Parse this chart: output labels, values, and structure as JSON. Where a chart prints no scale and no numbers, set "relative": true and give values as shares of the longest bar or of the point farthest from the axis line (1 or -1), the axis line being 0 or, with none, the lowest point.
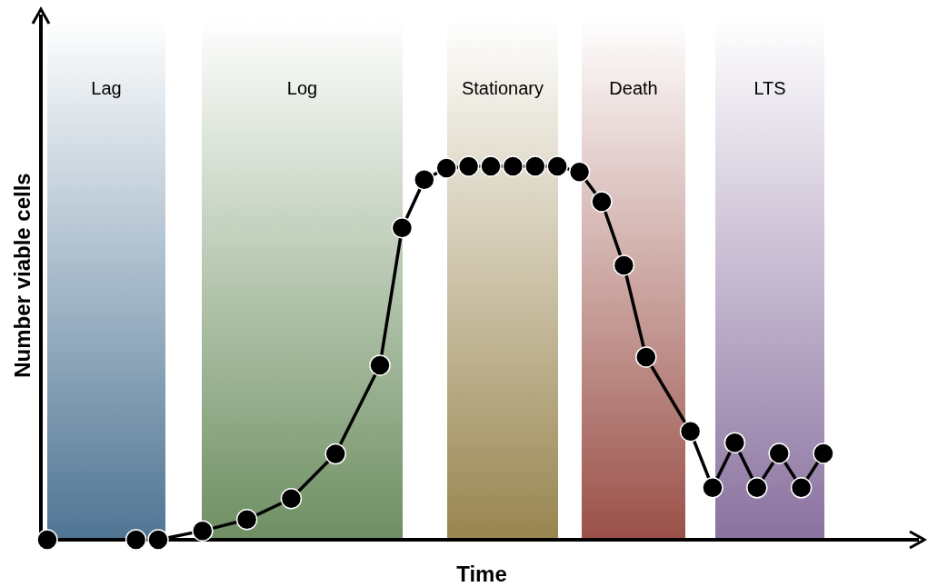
{
  "chart_data": {
    "type": "line",
    "xlabel": "Time",
    "ylabel": "Number viable cells",
    "relative": true,
    "marker": "circle",
    "line_style": "solid",
    "grid": false,
    "categories": [
      null,
      null,
      null,
      null,
      null,
      null,
      null,
      null,
      null,
      null,
      null,
      null,
      null,
      null,
      null,
      null,
      null,
      null,
      null,
      null,
      null,
      null,
      null,
      null,
      null,
      null,
      null,
      null,
      null,
      null,
      null,
      null,
      null,
      null,
      null,
      null
    ],
    "series": [
      {
        "color": "#000000",
        "values": [
          0,
          null,
          null,
          null,
          0,
          0,
          null,
          0.024,
          null,
          0.054,
          null,
          0.11,
          null,
          0.23,
          null,
          0.467,
          0.835,
          0.964,
          0.995,
          1,
          1,
          1,
          1,
          1,
          0.985,
          0.905,
          0.735,
          0.489,
          null,
          0.29,
          0.139,
          0.26,
          0.139,
          0.231,
          0.139,
          0.231
        ]
      }
    ],
    "annotations": [
      "Lag",
      "Log",
      "Stationary",
      "Death",
      "LTS"
    ]
  }
}
